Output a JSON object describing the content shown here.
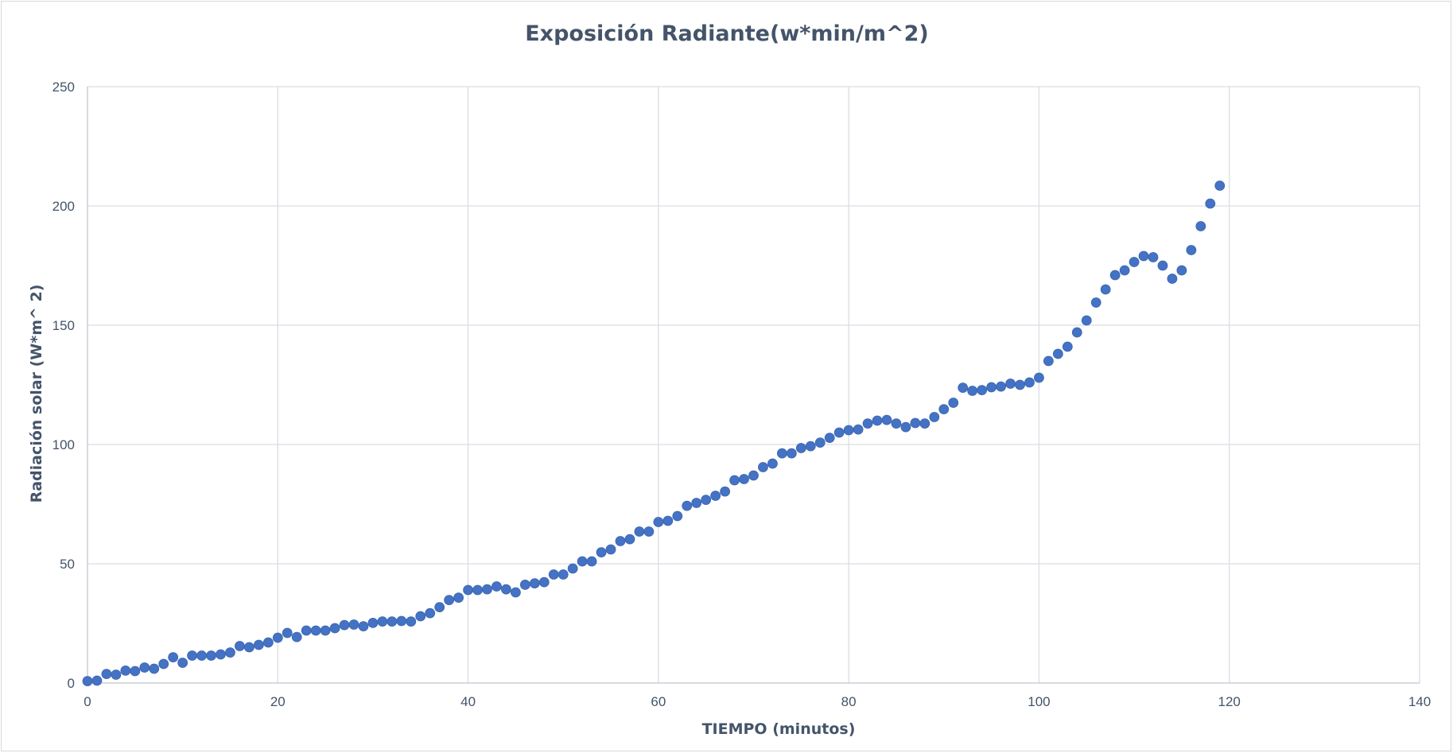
{
  "chart_data": {
    "type": "scatter",
    "title": "Exposición Radiante(w*min/m^2)",
    "xlabel": "TIEMPO (minutos)",
    "ylabel": "Radiación solar (W*m^ 2)",
    "xlim": [
      0,
      140
    ],
    "ylim": [
      0,
      250
    ],
    "x_ticks": [
      0,
      20,
      40,
      60,
      80,
      100,
      120,
      140
    ],
    "y_ticks": [
      0,
      50,
      100,
      150,
      200,
      250
    ],
    "grid": true,
    "legend": "none",
    "marker_color": "#4472c4",
    "series": [
      {
        "x": [
          0,
          1,
          2,
          3,
          4,
          5,
          6,
          7,
          8,
          9,
          10,
          11,
          12,
          13,
          14,
          15,
          16,
          17,
          18,
          19,
          20,
          21,
          22,
          23,
          24,
          25,
          26,
          27,
          28,
          29,
          30,
          31,
          32,
          33,
          34,
          35,
          36,
          37,
          38,
          39,
          40,
          41,
          42,
          43,
          44,
          45,
          46,
          47,
          48,
          49,
          50,
          51,
          52,
          53,
          54,
          55,
          56,
          57,
          58,
          59,
          60,
          61,
          62,
          63,
          64,
          65,
          66,
          67,
          68,
          69,
          70,
          71,
          72,
          73,
          74,
          75,
          76,
          77,
          78,
          79,
          80,
          81,
          82,
          83,
          84,
          85,
          86,
          87,
          88,
          89,
          90,
          91,
          92,
          93,
          94,
          95,
          96,
          97,
          98,
          99,
          100,
          101,
          102,
          103,
          104,
          105,
          106,
          107,
          108,
          109,
          110,
          111,
          112,
          113,
          114,
          115,
          116,
          117,
          118,
          119
        ],
        "y": [
          0.8,
          1.0,
          3.8,
          3.5,
          5.2,
          5.0,
          6.5,
          6.0,
          8.0,
          10.8,
          8.5,
          11.5,
          11.5,
          11.5,
          12.0,
          12.8,
          15.5,
          15.0,
          16.0,
          17.0,
          19.0,
          21.0,
          19.3,
          22.0,
          22.0,
          22.0,
          23.0,
          24.3,
          24.5,
          23.8,
          25.2,
          25.8,
          25.8,
          26.0,
          25.8,
          28.0,
          29.3,
          31.8,
          34.8,
          35.8,
          39.0,
          39.0,
          39.3,
          40.5,
          39.3,
          38.0,
          41.2,
          41.8,
          42.3,
          45.5,
          45.5,
          48.0,
          51.0,
          51.0,
          54.8,
          56.0,
          59.5,
          60.3,
          63.5,
          63.5,
          67.5,
          68.0,
          70.0,
          74.3,
          75.5,
          76.8,
          78.5,
          80.3,
          85.0,
          85.5,
          87.0,
          90.5,
          92.0,
          96.3,
          96.3,
          98.5,
          99.3,
          100.8,
          102.8,
          105.0,
          106.0,
          106.3,
          108.8,
          110.0,
          110.3,
          108.8,
          107.3,
          109.0,
          108.8,
          111.5,
          114.8,
          117.5,
          123.8,
          122.5,
          122.8,
          124.0,
          124.3,
          125.5,
          125.0,
          126.0,
          128.0,
          135.0,
          138.0,
          141.0,
          147.0,
          152.0,
          159.5,
          165.0,
          171.0,
          173.0,
          176.5,
          179.0,
          178.5,
          175.0,
          169.5,
          173.0,
          181.5,
          191.5,
          201.0,
          208.5
        ]
      }
    ]
  }
}
